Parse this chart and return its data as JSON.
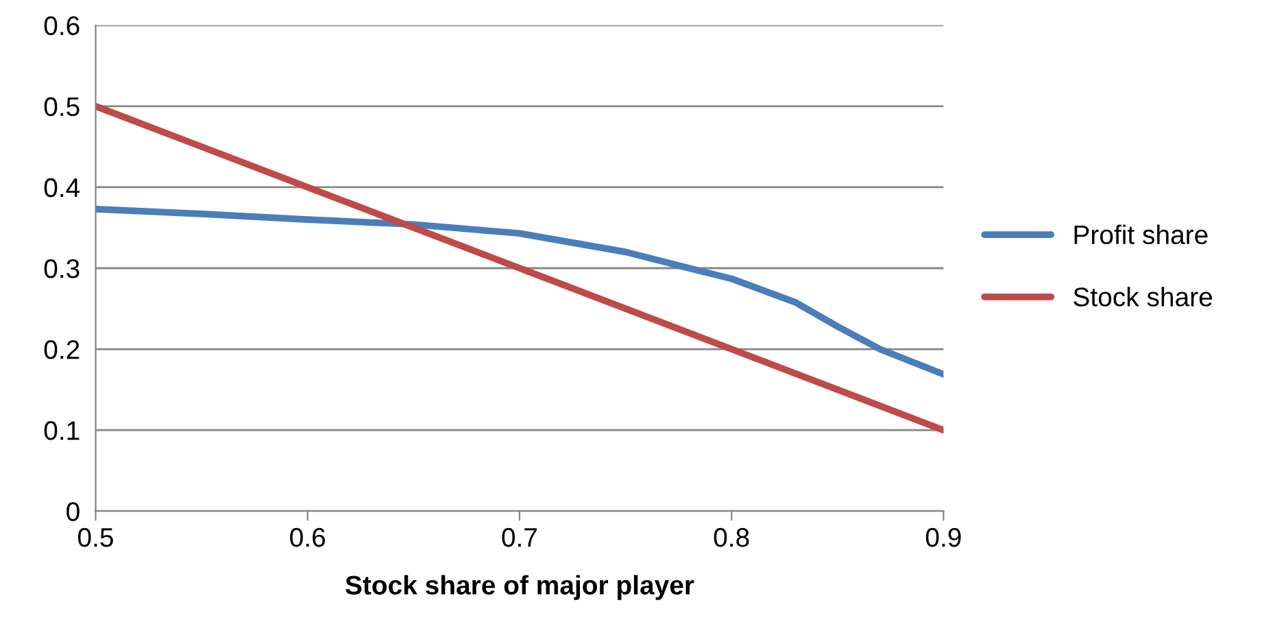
{
  "chart_data": {
    "type": "line",
    "xlabel": "Stock share of major player",
    "series": [
      {
        "name": "Profit share",
        "color": "#4a7ebb",
        "x": [
          0.5,
          0.55,
          0.6,
          0.65,
          0.7,
          0.75,
          0.78,
          0.8,
          0.83,
          0.85,
          0.87,
          0.9
        ],
        "values": [
          0.373,
          0.367,
          0.36,
          0.354,
          0.343,
          0.32,
          0.3,
          0.287,
          0.258,
          0.228,
          0.2,
          0.169
        ]
      },
      {
        "name": "Stock share",
        "color": "#be4b48",
        "x": [
          0.5,
          0.6,
          0.7,
          0.8,
          0.9
        ],
        "values": [
          0.5,
          0.4,
          0.3,
          0.2,
          0.1
        ]
      }
    ],
    "xlim": [
      0.5,
      0.9
    ],
    "xticks": [
      0.5,
      0.6,
      0.7,
      0.8,
      0.9
    ],
    "ylim": [
      0,
      0.6
    ],
    "yticks": [
      0,
      0.1,
      0.2,
      0.3,
      0.4,
      0.5,
      0.6
    ],
    "grid": "y",
    "legend": "right",
    "marker": "none",
    "line_style": "solid"
  }
}
